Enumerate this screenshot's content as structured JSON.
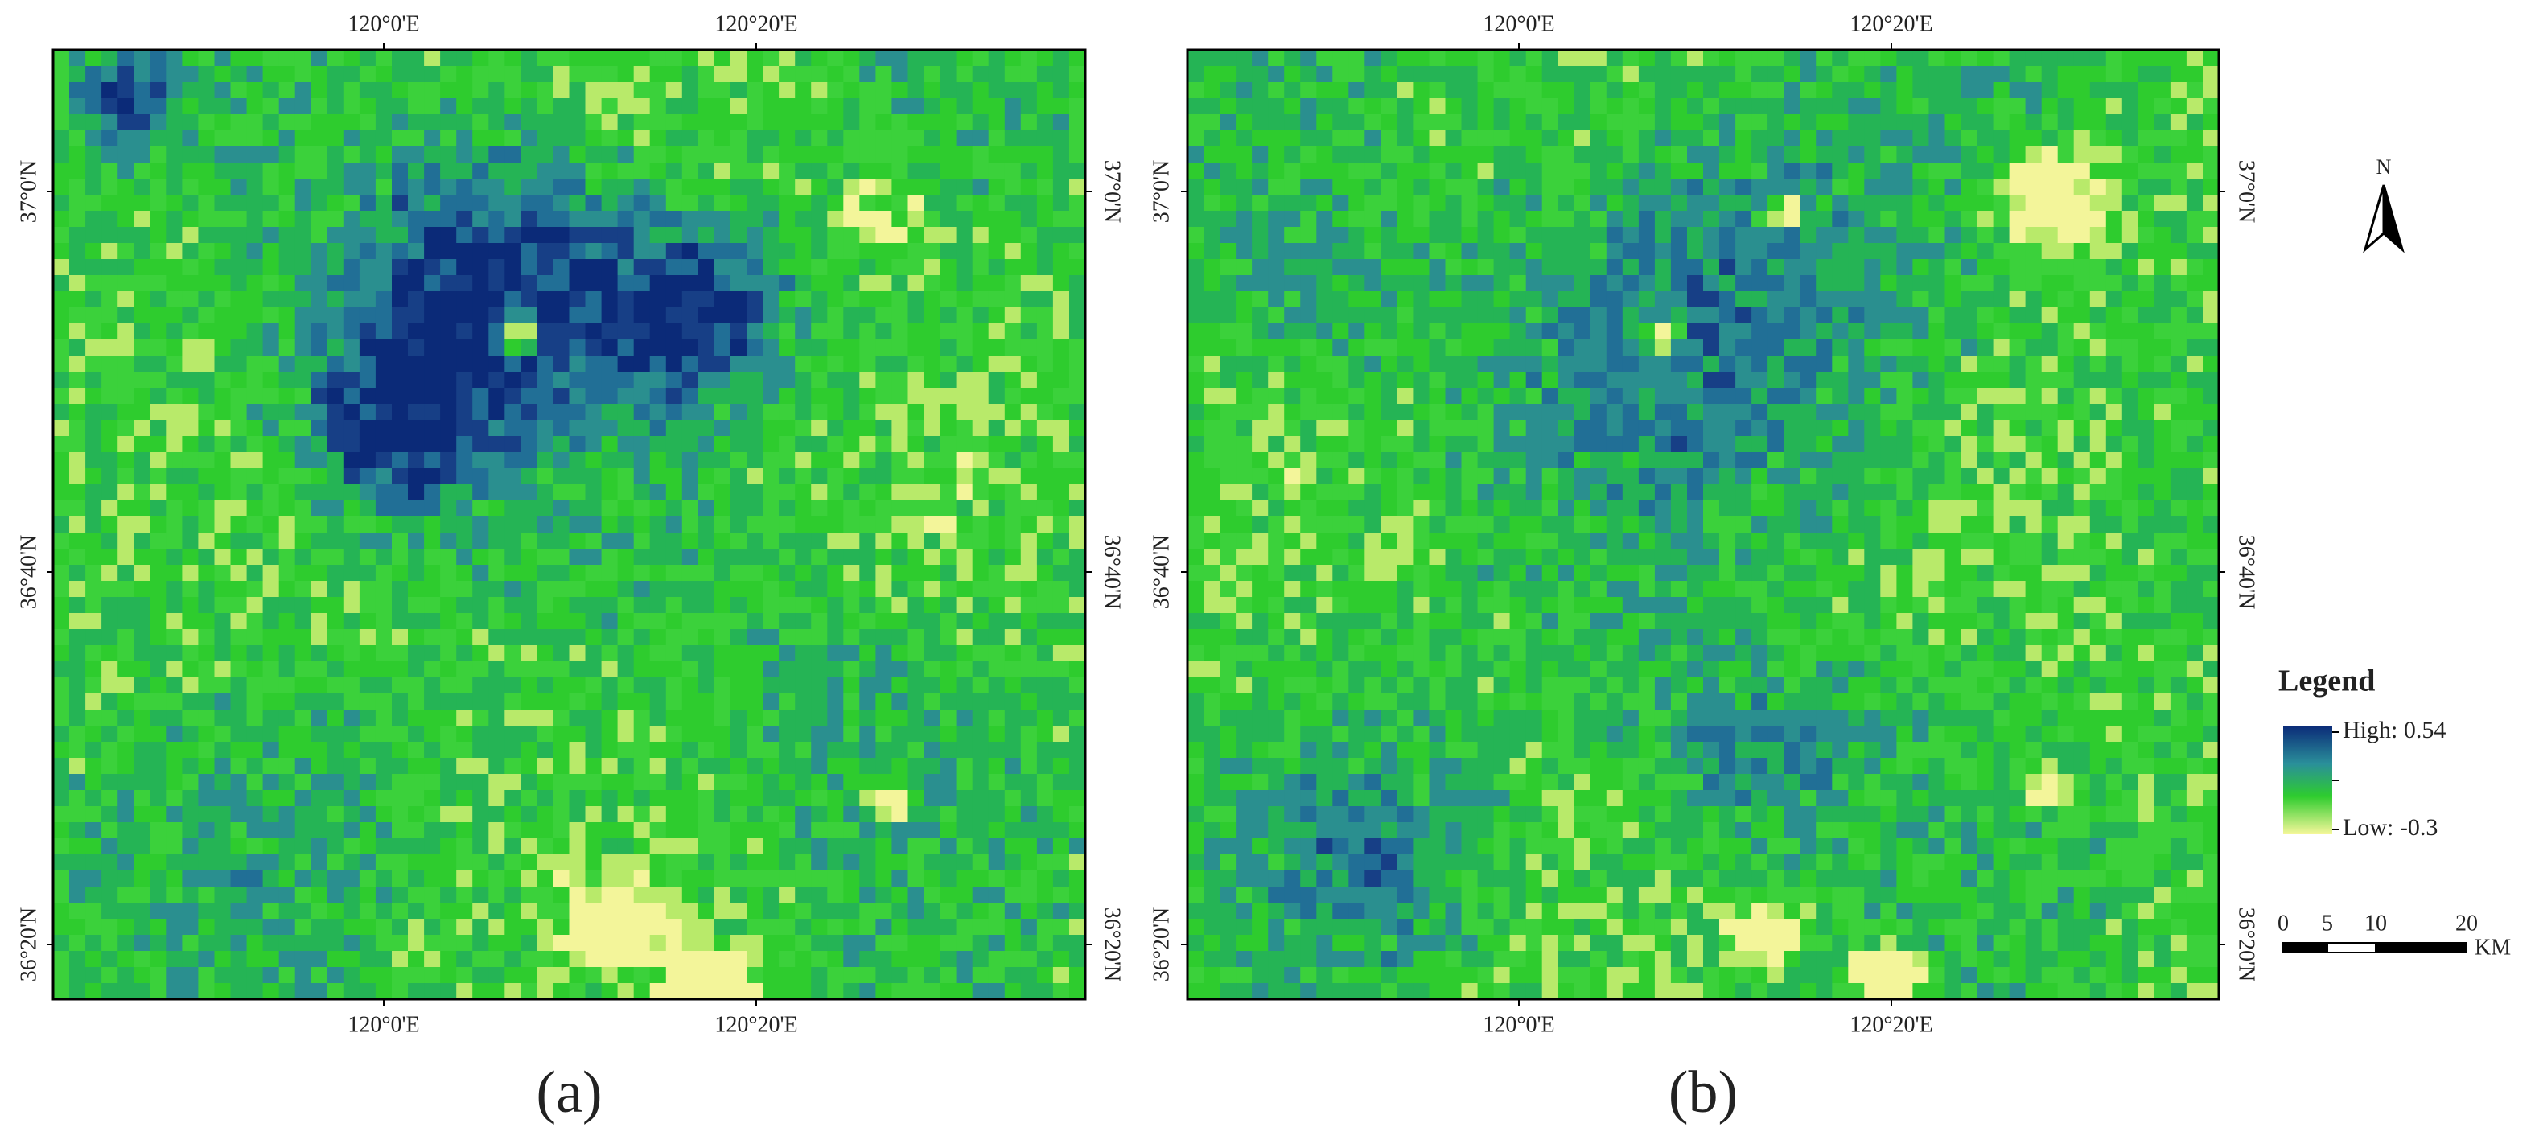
{
  "panels": [
    {
      "caption": "(a)",
      "top_ticks": [
        "120°0'E",
        "120°20'E"
      ],
      "bottom_ticks": [
        "120°0'E",
        "120°20'E"
      ],
      "left_ticks": [
        "37°0'N",
        "36°40'N",
        "36°20'N"
      ],
      "right_ticks": [
        "37°0'N",
        "36°40'N",
        "36°20'N"
      ]
    },
    {
      "caption": "(b)",
      "top_ticks": [
        "120°0'E",
        "120°20'E"
      ],
      "bottom_ticks": [
        "120°0'E",
        "120°20'E"
      ],
      "left_ticks": [
        "37°0'N",
        "36°40'N",
        "36°20'N"
      ],
      "right_ticks": [
        "37°0'N",
        "36°40'N",
        "36°20'N"
      ]
    }
  ],
  "north_arrow": {
    "label": "N"
  },
  "legend": {
    "title": "Legend",
    "high": "High: 0.54",
    "low": "Low: -0.3"
  },
  "scale_bar": {
    "labels": [
      "0",
      "5",
      "10",
      "20"
    ],
    "unit": "KM"
  }
}
